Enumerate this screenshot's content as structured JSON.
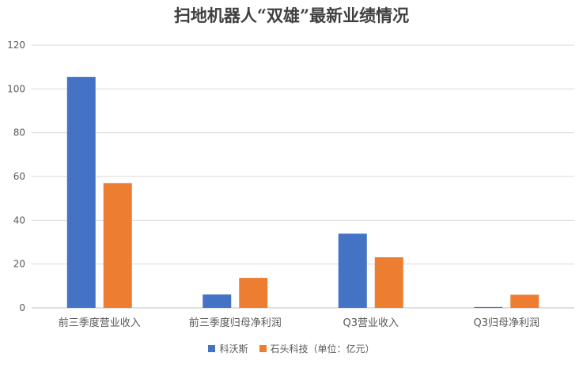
{
  "chart_data": {
    "type": "bar",
    "title": "扫地机器人“双雄”最新业绩情况",
    "categories": [
      "前三季度营业收入",
      "前三季度归母净利润",
      "Q3营业收入",
      "Q3归母净利润"
    ],
    "series": [
      {
        "name": "科沃斯",
        "color": "#4472C4",
        "values": [
          105.5,
          6.1,
          33.9,
          0.4
        ]
      },
      {
        "name": "石头科技（单位：亿元）",
        "color": "#ED7D31",
        "values": [
          57.0,
          13.7,
          23.1,
          6.0
        ]
      }
    ],
    "ylim": [
      0,
      120
    ],
    "yticks": [
      0,
      20,
      40,
      60,
      80,
      100,
      120
    ],
    "grid": true,
    "legend_position": "bottom"
  }
}
